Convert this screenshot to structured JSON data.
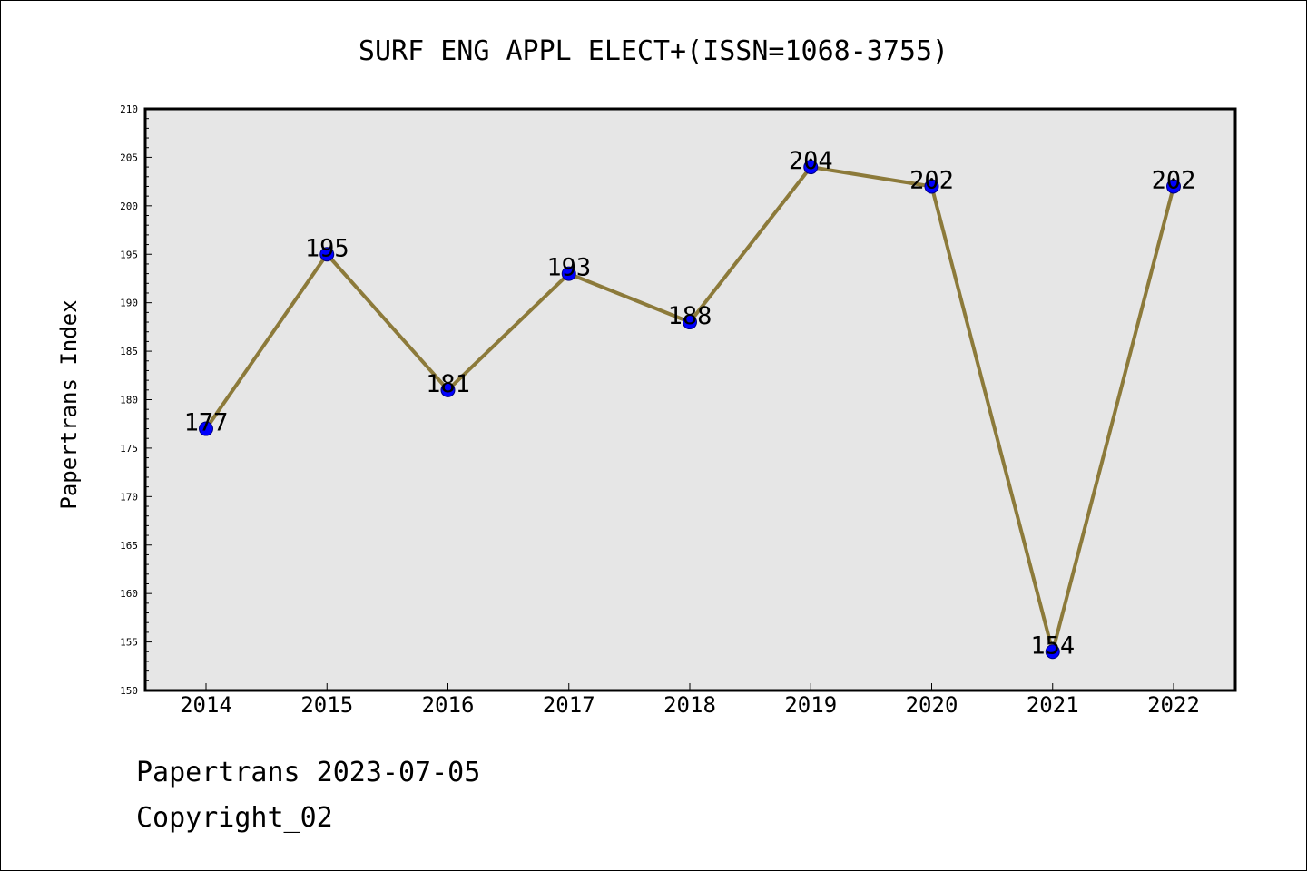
{
  "chart_data": {
    "type": "line",
    "title": "SURF ENG APPL ELECT+(ISSN=1068-3755)",
    "xlabel": "",
    "ylabel": "Papertrans Index",
    "categories": [
      "2014",
      "2015",
      "2016",
      "2017",
      "2018",
      "2019",
      "2020",
      "2021",
      "2022"
    ],
    "values": [
      177,
      195,
      181,
      193,
      188,
      204,
      202,
      154,
      202
    ],
    "data_labels": [
      "177",
      "195",
      "181",
      "193",
      "188",
      "204",
      "202",
      "154",
      "202"
    ],
    "ylim": [
      150,
      210
    ],
    "y_major_ticks": [
      150,
      155,
      160,
      165,
      170,
      175,
      180,
      185,
      190,
      195,
      200,
      205,
      210
    ],
    "grid": false,
    "colors": {
      "line": "#8c7a3a",
      "marker_fill": "#0000ff",
      "marker_edge": "#000080",
      "plot_background": "#e6e6e6"
    }
  },
  "footer": {
    "stamp": "Papertrans 2023-07-05",
    "copyright": "Copyright_02"
  }
}
